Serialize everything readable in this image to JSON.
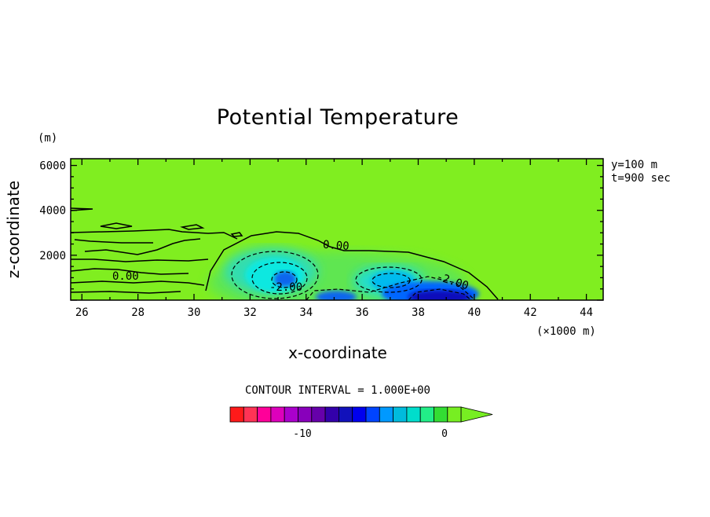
{
  "chart_data": {
    "type": "contour",
    "title": "Potential Temperature",
    "xlabel": "x-coordinate",
    "ylabel": "z-coordinate",
    "x_unit": "(×1000 m)",
    "y_unit": "(m)",
    "xlim": [
      25.6,
      44.6
    ],
    "ylim": [
      0,
      6300
    ],
    "xticks": [
      26,
      28,
      30,
      32,
      34,
      36,
      38,
      40,
      42,
      44
    ],
    "yticks": [
      2000,
      4000,
      6000
    ],
    "info": [
      "y=100 m",
      "t=900 sec"
    ],
    "contour_labels": [
      "0.00",
      "0.00",
      "-2.00",
      "-2.00"
    ],
    "contour_interval": "CONTOUR INTERVAL = 1.000E+00",
    "colorbar": {
      "ticks": [
        "-10",
        "0"
      ],
      "levels": [
        -14,
        -13,
        -12,
        -11,
        -10,
        -9,
        -8,
        -7,
        -6,
        -5,
        -4,
        -3,
        -2,
        -1,
        0
      ],
      "colors": [
        "#ff1a1a",
        "#ff3355",
        "#ff0099",
        "#dd00bb",
        "#aa00cc",
        "#8800bb",
        "#6600aa",
        "#3300aa",
        "#1111bb",
        "#0000ee",
        "#0044ff",
        "#0099ff",
        "#00bbdd",
        "#00ddcc",
        "#22ee88",
        "#33dd33",
        "#77ee22"
      ]
    },
    "background_color": "#80ee20"
  }
}
